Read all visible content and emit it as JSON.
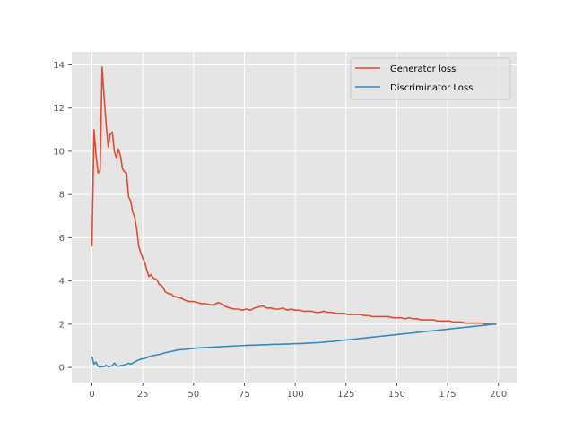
{
  "chart_data": {
    "type": "line",
    "title": "",
    "xlabel": "",
    "ylabel": "",
    "xlim": [
      -9.95,
      208.95
    ],
    "ylim": [
      -0.7,
      14.6
    ],
    "x_ticks": [
      0,
      25,
      50,
      75,
      100,
      125,
      150,
      175,
      200
    ],
    "y_ticks": [
      0,
      2,
      4,
      6,
      8,
      10,
      12,
      14
    ],
    "grid": true,
    "legend_position": "top-right",
    "series": [
      {
        "name": "Generator loss",
        "color": "#E24A33",
        "points": [
          [
            0,
            5.6
          ],
          [
            1,
            11.0
          ],
          [
            2,
            9.8
          ],
          [
            3,
            9.0
          ],
          [
            4,
            9.1
          ],
          [
            5,
            13.9
          ],
          [
            6,
            12.5
          ],
          [
            7,
            11.2
          ],
          [
            8,
            10.2
          ],
          [
            9,
            10.8
          ],
          [
            10,
            10.9
          ],
          [
            11,
            10.0
          ],
          [
            12,
            9.7
          ],
          [
            13,
            10.1
          ],
          [
            14,
            9.8
          ],
          [
            15,
            9.2
          ],
          [
            16,
            9.05
          ],
          [
            17,
            9.0
          ],
          [
            18,
            7.9
          ],
          [
            19,
            7.7
          ],
          [
            20,
            7.2
          ],
          [
            21,
            6.95
          ],
          [
            22,
            6.4
          ],
          [
            23,
            5.6
          ],
          [
            24,
            5.3
          ],
          [
            25,
            5.05
          ],
          [
            26,
            4.85
          ],
          [
            27,
            4.5
          ],
          [
            28,
            4.2
          ],
          [
            29,
            4.3
          ],
          [
            30,
            4.15
          ],
          [
            31,
            4.1
          ],
          [
            32,
            4.05
          ],
          [
            33,
            3.85
          ],
          [
            34,
            3.8
          ],
          [
            35,
            3.7
          ],
          [
            36,
            3.5
          ],
          [
            37,
            3.45
          ],
          [
            38,
            3.4
          ],
          [
            39,
            3.4
          ],
          [
            40,
            3.3
          ],
          [
            42,
            3.25
          ],
          [
            44,
            3.2
          ],
          [
            46,
            3.1
          ],
          [
            48,
            3.05
          ],
          [
            50,
            3.05
          ],
          [
            52,
            3.0
          ],
          [
            54,
            2.95
          ],
          [
            56,
            2.95
          ],
          [
            58,
            2.9
          ],
          [
            60,
            2.9
          ],
          [
            62,
            3.0
          ],
          [
            64,
            2.95
          ],
          [
            66,
            2.8
          ],
          [
            68,
            2.75
          ],
          [
            70,
            2.7
          ],
          [
            72,
            2.7
          ],
          [
            74,
            2.65
          ],
          [
            76,
            2.7
          ],
          [
            78,
            2.65
          ],
          [
            80,
            2.75
          ],
          [
            82,
            2.8
          ],
          [
            84,
            2.85
          ],
          [
            86,
            2.75
          ],
          [
            88,
            2.75
          ],
          [
            90,
            2.7
          ],
          [
            92,
            2.7
          ],
          [
            94,
            2.75
          ],
          [
            96,
            2.65
          ],
          [
            98,
            2.7
          ],
          [
            100,
            2.65
          ],
          [
            102,
            2.65
          ],
          [
            104,
            2.6
          ],
          [
            106,
            2.6
          ],
          [
            108,
            2.6
          ],
          [
            110,
            2.55
          ],
          [
            112,
            2.55
          ],
          [
            114,
            2.6
          ],
          [
            116,
            2.55
          ],
          [
            118,
            2.55
          ],
          [
            120,
            2.5
          ],
          [
            122,
            2.5
          ],
          [
            124,
            2.5
          ],
          [
            126,
            2.45
          ],
          [
            128,
            2.45
          ],
          [
            130,
            2.45
          ],
          [
            132,
            2.45
          ],
          [
            134,
            2.4
          ],
          [
            136,
            2.4
          ],
          [
            138,
            2.35
          ],
          [
            140,
            2.35
          ],
          [
            142,
            2.35
          ],
          [
            144,
            2.35
          ],
          [
            146,
            2.35
          ],
          [
            148,
            2.3
          ],
          [
            150,
            2.3
          ],
          [
            152,
            2.3
          ],
          [
            154,
            2.25
          ],
          [
            156,
            2.3
          ],
          [
            158,
            2.25
          ],
          [
            160,
            2.25
          ],
          [
            162,
            2.2
          ],
          [
            164,
            2.2
          ],
          [
            166,
            2.2
          ],
          [
            168,
            2.2
          ],
          [
            170,
            2.15
          ],
          [
            172,
            2.15
          ],
          [
            174,
            2.15
          ],
          [
            176,
            2.15
          ],
          [
            178,
            2.1
          ],
          [
            180,
            2.1
          ],
          [
            182,
            2.1
          ],
          [
            184,
            2.05
          ],
          [
            186,
            2.05
          ],
          [
            188,
            2.05
          ],
          [
            190,
            2.05
          ],
          [
            192,
            2.05
          ],
          [
            194,
            2.0
          ],
          [
            196,
            2.0
          ],
          [
            198,
            2.0
          ],
          [
            199,
            2.0
          ]
        ]
      },
      {
        "name": "Discriminator Loss",
        "color": "#348ABD",
        "points": [
          [
            0,
            0.5
          ],
          [
            1,
            0.15
          ],
          [
            2,
            0.25
          ],
          [
            3,
            0.05
          ],
          [
            4,
            0.02
          ],
          [
            5,
            0.03
          ],
          [
            6,
            0.04
          ],
          [
            7,
            0.1
          ],
          [
            8,
            0.03
          ],
          [
            9,
            0.05
          ],
          [
            10,
            0.08
          ],
          [
            11,
            0.2
          ],
          [
            12,
            0.1
          ],
          [
            13,
            0.05
          ],
          [
            14,
            0.08
          ],
          [
            15,
            0.1
          ],
          [
            16,
            0.12
          ],
          [
            17,
            0.15
          ],
          [
            18,
            0.2
          ],
          [
            19,
            0.15
          ],
          [
            20,
            0.2
          ],
          [
            21,
            0.25
          ],
          [
            22,
            0.3
          ],
          [
            23,
            0.35
          ],
          [
            24,
            0.38
          ],
          [
            25,
            0.4
          ],
          [
            26,
            0.42
          ],
          [
            27,
            0.45
          ],
          [
            28,
            0.5
          ],
          [
            29,
            0.52
          ],
          [
            30,
            0.55
          ],
          [
            32,
            0.58
          ],
          [
            34,
            0.62
          ],
          [
            36,
            0.68
          ],
          [
            38,
            0.72
          ],
          [
            40,
            0.76
          ],
          [
            42,
            0.8
          ],
          [
            44,
            0.82
          ],
          [
            46,
            0.84
          ],
          [
            48,
            0.86
          ],
          [
            50,
            0.88
          ],
          [
            52,
            0.9
          ],
          [
            54,
            0.91
          ],
          [
            56,
            0.92
          ],
          [
            58,
            0.93
          ],
          [
            60,
            0.94
          ],
          [
            62,
            0.95
          ],
          [
            64,
            0.96
          ],
          [
            66,
            0.97
          ],
          [
            68,
            0.98
          ],
          [
            70,
            0.99
          ],
          [
            72,
            1.0
          ],
          [
            74,
            1.01
          ],
          [
            76,
            1.02
          ],
          [
            78,
            1.03
          ],
          [
            80,
            1.03
          ],
          [
            82,
            1.04
          ],
          [
            84,
            1.05
          ],
          [
            86,
            1.05
          ],
          [
            88,
            1.06
          ],
          [
            90,
            1.07
          ],
          [
            92,
            1.07
          ],
          [
            94,
            1.08
          ],
          [
            96,
            1.08
          ],
          [
            98,
            1.09
          ],
          [
            100,
            1.1
          ],
          [
            102,
            1.1
          ],
          [
            104,
            1.11
          ],
          [
            106,
            1.12
          ],
          [
            108,
            1.13
          ],
          [
            110,
            1.14
          ],
          [
            112,
            1.15
          ],
          [
            114,
            1.17
          ],
          [
            116,
            1.19
          ],
          [
            118,
            1.2
          ],
          [
            120,
            1.22
          ],
          [
            122,
            1.24
          ],
          [
            124,
            1.26
          ],
          [
            126,
            1.28
          ],
          [
            128,
            1.3
          ],
          [
            130,
            1.32
          ],
          [
            132,
            1.34
          ],
          [
            134,
            1.36
          ],
          [
            136,
            1.38
          ],
          [
            138,
            1.4
          ],
          [
            140,
            1.42
          ],
          [
            142,
            1.44
          ],
          [
            144,
            1.46
          ],
          [
            146,
            1.48
          ],
          [
            148,
            1.5
          ],
          [
            150,
            1.52
          ],
          [
            152,
            1.54
          ],
          [
            154,
            1.56
          ],
          [
            156,
            1.58
          ],
          [
            158,
            1.6
          ],
          [
            160,
            1.62
          ],
          [
            162,
            1.64
          ],
          [
            164,
            1.66
          ],
          [
            166,
            1.68
          ],
          [
            168,
            1.7
          ],
          [
            170,
            1.72
          ],
          [
            172,
            1.74
          ],
          [
            174,
            1.76
          ],
          [
            176,
            1.78
          ],
          [
            178,
            1.8
          ],
          [
            180,
            1.82
          ],
          [
            182,
            1.84
          ],
          [
            184,
            1.86
          ],
          [
            186,
            1.88
          ],
          [
            188,
            1.9
          ],
          [
            190,
            1.92
          ],
          [
            192,
            1.94
          ],
          [
            194,
            1.96
          ],
          [
            196,
            1.98
          ],
          [
            198,
            2.0
          ],
          [
            199,
            2.02
          ]
        ]
      }
    ]
  }
}
